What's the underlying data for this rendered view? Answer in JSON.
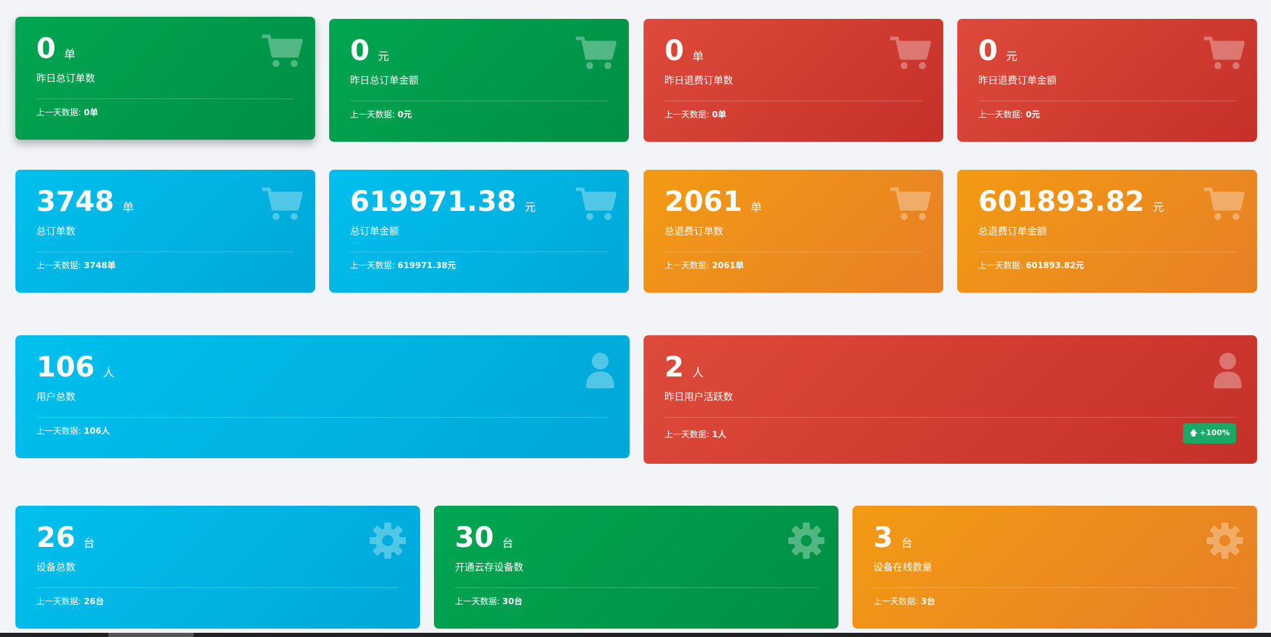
{
  "cards": [
    {
      "value": "0",
      "unit": "单",
      "label": "昨日总订单数",
      "prev_label": "上一天数据:",
      "prev_value": "0单",
      "color": "green",
      "icon": "cart-icon"
    },
    {
      "value": "0",
      "unit": "元",
      "label": "昨日总订单金额",
      "prev_label": "上一天数据:",
      "prev_value": "0元",
      "color": "green",
      "icon": "cart-icon"
    },
    {
      "value": "0",
      "unit": "单",
      "label": "昨日退费订单数",
      "prev_label": "上一天数据:",
      "prev_value": "0单",
      "color": "red",
      "icon": "cart-icon"
    },
    {
      "value": "0",
      "unit": "元",
      "label": "昨日退费订单金额",
      "prev_label": "上一天数据:",
      "prev_value": "0元",
      "color": "red",
      "icon": "cart-icon"
    },
    {
      "value": "3748",
      "unit": "单",
      "label": "总订单数",
      "prev_label": "上一天数据:",
      "prev_value": "3748单",
      "color": "blue",
      "icon": "cart-icon"
    },
    {
      "value": "619971.38",
      "unit": "元",
      "label": "总订单金额",
      "prev_label": "上一天数据:",
      "prev_value": "619971.38元",
      "color": "blue",
      "icon": "cart-icon"
    },
    {
      "value": "2061",
      "unit": "单",
      "label": "总退费订单数",
      "prev_label": "上一天数据:",
      "prev_value": "2061单",
      "color": "orange",
      "icon": "cart-icon"
    },
    {
      "value": "601893.82",
      "unit": "元",
      "label": "总退费订单金额",
      "prev_label": "上一天数据:",
      "prev_value": "601893.82元",
      "color": "orange",
      "icon": "cart-icon"
    },
    {
      "value": "106",
      "unit": "人",
      "label": "用户总数",
      "prev_label": "上一天数据:",
      "prev_value": "106人",
      "color": "blue",
      "icon": "user-icon"
    },
    {
      "value": "2",
      "unit": "人",
      "label": "昨日用户活跃数",
      "prev_label": "上一天数据:",
      "prev_value": "1人",
      "color": "red",
      "icon": "user-icon",
      "badge": "+100%"
    },
    {
      "value": "26",
      "unit": "台",
      "label": "设备总数",
      "prev_label": "上一天数据:",
      "prev_value": "26台",
      "color": "blue",
      "icon": "gear-icon"
    },
    {
      "value": "30",
      "unit": "台",
      "label": "开通云存设备数",
      "prev_label": "上一天数据:",
      "prev_value": "30台",
      "color": "green",
      "icon": "gear-icon"
    },
    {
      "value": "3",
      "unit": "台",
      "label": "设备在线数量",
      "prev_label": "上一天数据:",
      "prev_value": "3台",
      "color": "orange",
      "icon": "gear-icon"
    }
  ],
  "colors": {
    "green": "#00a652",
    "red": "#d9423a",
    "blue": "#00b8ea",
    "orange": "#f0901c",
    "badge": "#1aa867"
  }
}
